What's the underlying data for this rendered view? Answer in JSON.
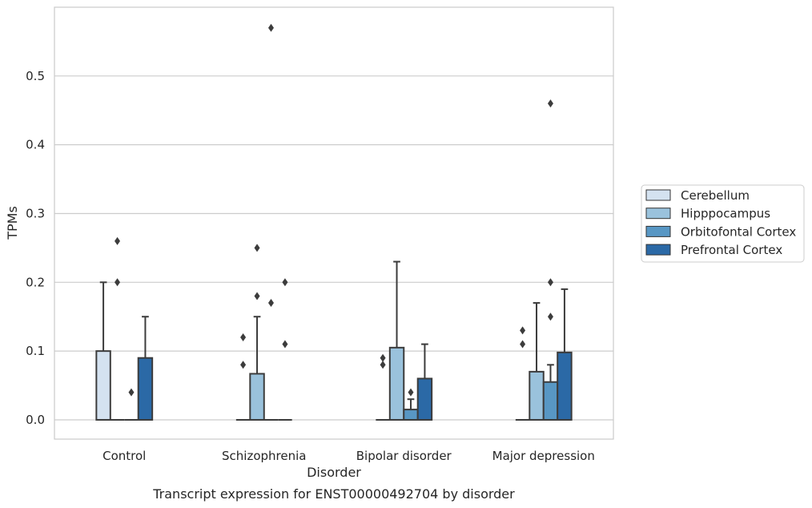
{
  "chart_data": {
    "type": "box",
    "xlabel": "Disorder",
    "ylabel": "TPMs",
    "caption": "Transcript expression for ENST00000492704 by disorder",
    "categories": [
      "Control",
      "Schizophrenia",
      "Bipolar disorder",
      "Major depression"
    ],
    "ylim": [
      -0.028,
      0.6
    ],
    "yticks": [
      0.0,
      0.1,
      0.2,
      0.3,
      0.4,
      0.5
    ],
    "ytick_labels": [
      "0.0",
      "0.1",
      "0.2",
      "0.3",
      "0.4",
      "0.5"
    ],
    "grid": "horizontal",
    "legend_position": "right",
    "series": [
      {
        "name": "Cerebellum",
        "color": "#d4e2f0",
        "boxes": [
          {
            "q1": 0.0,
            "median": 0.0,
            "q3": 0.1,
            "whisker_low": 0.0,
            "whisker_high": 0.2,
            "outliers": []
          },
          {
            "q1": 0.0,
            "median": 0.0,
            "q3": 0.0,
            "whisker_low": 0.0,
            "whisker_high": 0.0,
            "outliers": [
              0.08,
              0.12
            ]
          },
          {
            "q1": 0.0,
            "median": 0.0,
            "q3": 0.0,
            "whisker_low": 0.0,
            "whisker_high": 0.0,
            "outliers": [
              0.08,
              0.09
            ]
          },
          {
            "q1": 0.0,
            "median": 0.0,
            "q3": 0.0,
            "whisker_low": 0.0,
            "whisker_high": 0.0,
            "outliers": [
              0.11,
              0.13
            ]
          }
        ]
      },
      {
        "name": "Hipppocampus",
        "color": "#9ac2dc",
        "boxes": [
          {
            "q1": 0.0,
            "median": 0.0,
            "q3": 0.0,
            "whisker_low": 0.0,
            "whisker_high": 0.0,
            "outliers": [
              0.2,
              0.26
            ]
          },
          {
            "q1": 0.0,
            "median": 0.0,
            "q3": 0.067,
            "whisker_low": 0.0,
            "whisker_high": 0.15,
            "outliers": [
              0.18,
              0.25
            ]
          },
          {
            "q1": 0.0,
            "median": 0.0,
            "q3": 0.105,
            "whisker_low": 0.0,
            "whisker_high": 0.23,
            "outliers": []
          },
          {
            "q1": 0.0,
            "median": 0.0,
            "q3": 0.07,
            "whisker_low": 0.0,
            "whisker_high": 0.17,
            "outliers": []
          }
        ]
      },
      {
        "name": "Orbitofontal Cortex",
        "color": "#5897c4",
        "boxes": [
          {
            "q1": 0.0,
            "median": 0.0,
            "q3": 0.0,
            "whisker_low": 0.0,
            "whisker_high": 0.0,
            "outliers": [
              0.04
            ]
          },
          {
            "q1": 0.0,
            "median": 0.0,
            "q3": 0.0,
            "whisker_low": 0.0,
            "whisker_high": 0.0,
            "outliers": [
              0.17,
              0.57
            ]
          },
          {
            "q1": 0.0,
            "median": 0.0,
            "q3": 0.015,
            "whisker_low": 0.0,
            "whisker_high": 0.03,
            "outliers": [
              0.04
            ]
          },
          {
            "q1": 0.0,
            "median": 0.0,
            "q3": 0.055,
            "whisker_low": 0.0,
            "whisker_high": 0.08,
            "outliers": [
              0.15,
              0.2,
              0.46
            ]
          }
        ]
      },
      {
        "name": "Prefrontal Cortex",
        "color": "#2b69a6",
        "boxes": [
          {
            "q1": 0.0,
            "median": 0.0,
            "q3": 0.09,
            "whisker_low": 0.0,
            "whisker_high": 0.15,
            "outliers": []
          },
          {
            "q1": 0.0,
            "median": 0.0,
            "q3": 0.0,
            "whisker_low": 0.0,
            "whisker_high": 0.0,
            "outliers": [
              0.11,
              0.2
            ]
          },
          {
            "q1": 0.0,
            "median": 0.0,
            "q3": 0.06,
            "whisker_low": 0.0,
            "whisker_high": 0.11,
            "outliers": []
          },
          {
            "q1": 0.0,
            "median": 0.0,
            "q3": 0.098,
            "whisker_low": 0.0,
            "whisker_high": 0.19,
            "outliers": []
          }
        ]
      }
    ]
  }
}
